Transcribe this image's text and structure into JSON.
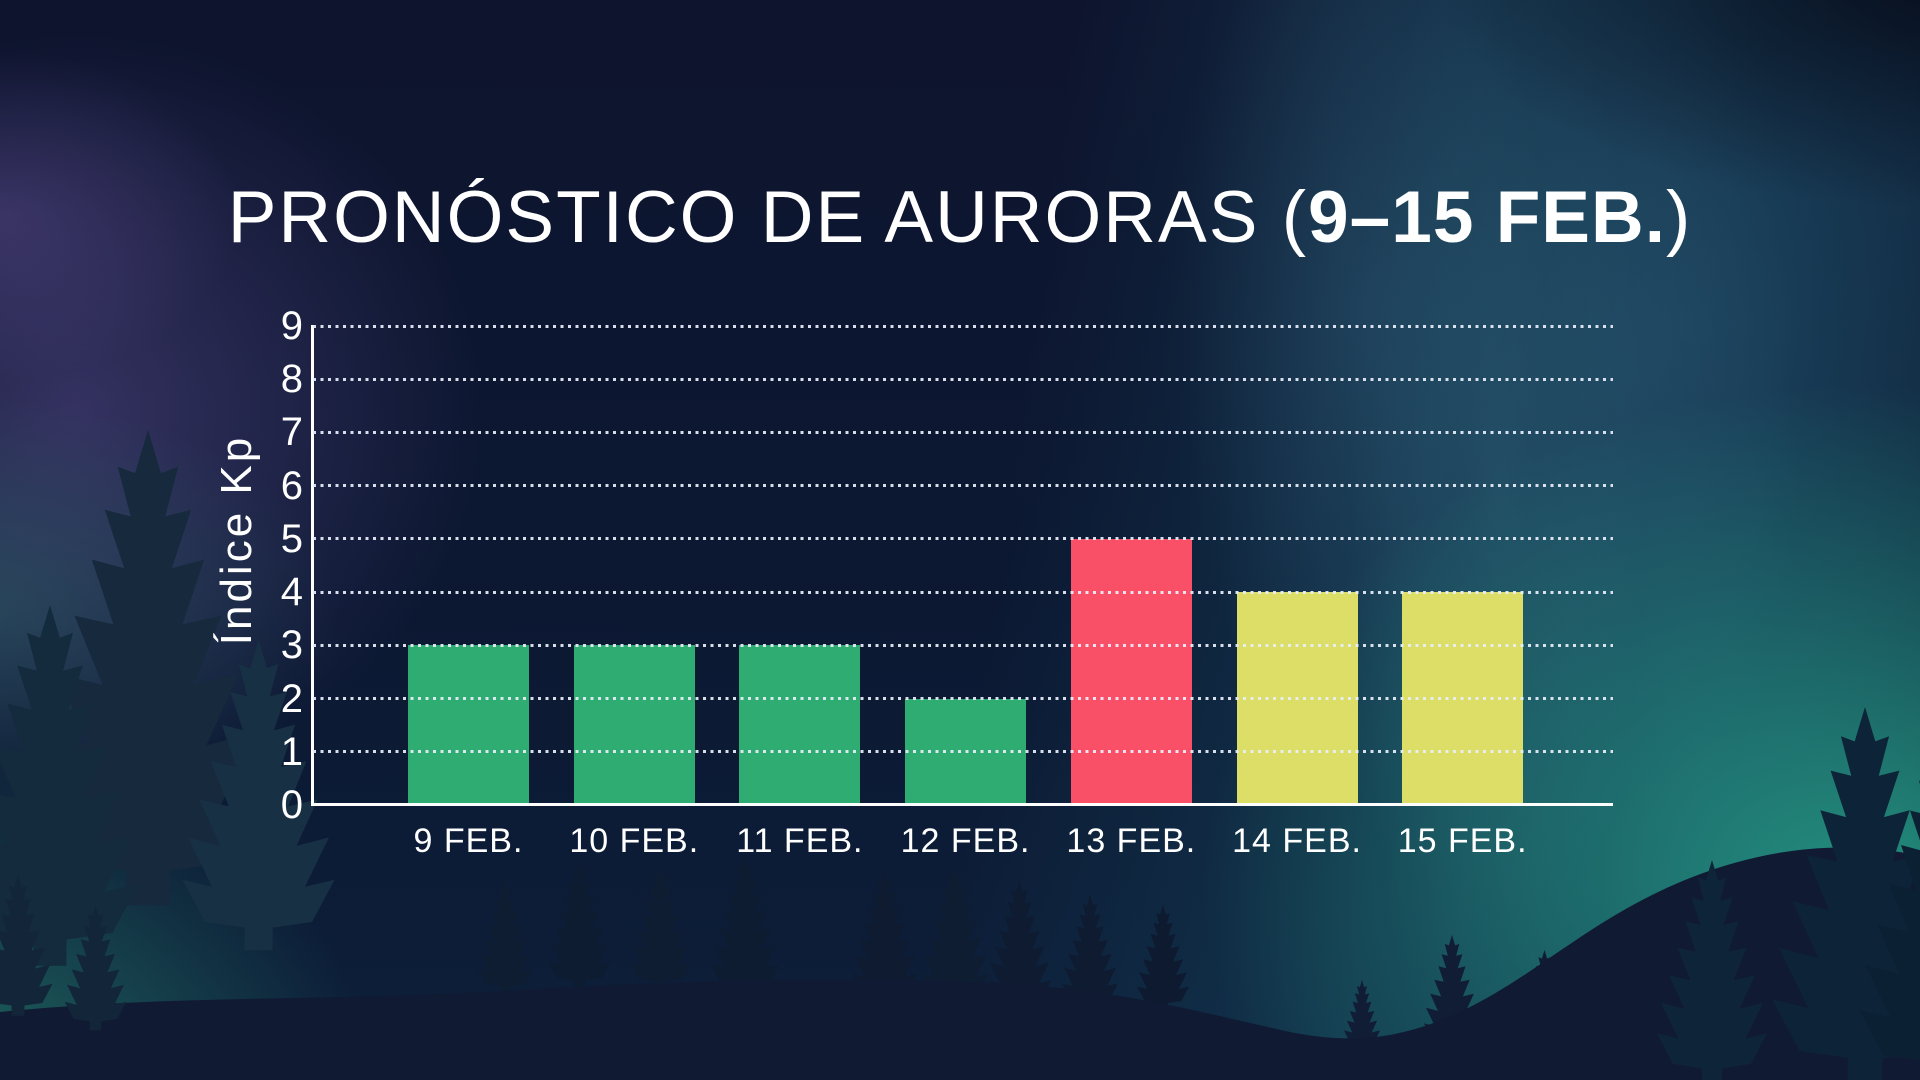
{
  "title": {
    "prefix": "PRONÓSTICO DE AURORAS (",
    "bold": "9–15 FEB.",
    "suffix": ")",
    "full": "PRONÓSTICO DE AURORAS (9–15 FEB.)"
  },
  "chart_data": {
    "type": "bar",
    "title": "PRONÓSTICO DE AURORAS (9–15 FEB.)",
    "categories": [
      "9 FEB.",
      "10 FEB.",
      "11 FEB.",
      "12 FEB.",
      "13 FEB.",
      "14 FEB.",
      "15 FEB."
    ],
    "values": [
      3,
      3,
      3,
      2,
      5,
      4,
      4
    ],
    "bar_colors": [
      "#2EAC72",
      "#2EAC72",
      "#2EAC72",
      "#2EAC72",
      "#F95067",
      "#DCDE67",
      "#DCDE67"
    ],
    "xlabel": "",
    "ylabel": "Índice Kp",
    "ylim": [
      0,
      9
    ],
    "yticks": [
      0,
      1,
      2,
      3,
      4,
      5,
      6,
      7,
      8,
      9
    ],
    "grid": "horizontal-dotted",
    "legend_position": "none"
  },
  "palette": {
    "bar_green": "#2EAC72",
    "bar_red": "#F95067",
    "bar_yellow": "#DCDE67",
    "axis": "#FFFFFF",
    "gridline": "#E9EEFA",
    "text": "#FFFFFF"
  }
}
